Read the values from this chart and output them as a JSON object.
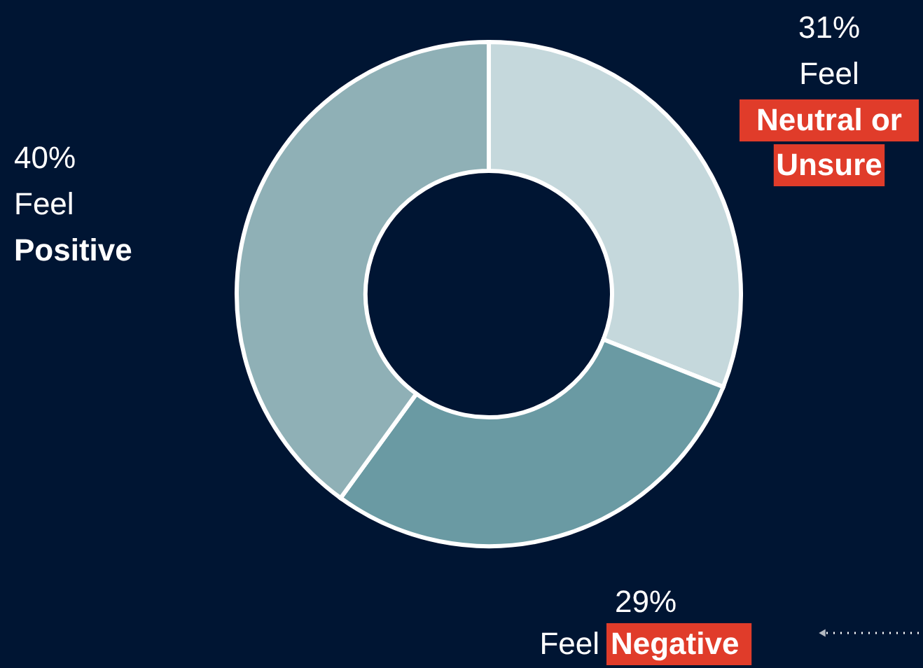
{
  "chart_data": {
    "type": "donut",
    "categories": [
      "Neutral or\nUnsure",
      "Negative",
      "Positive"
    ],
    "values": [
      31,
      29,
      40
    ],
    "colors": [
      "#c5d8dc",
      "#6a9aa3",
      "#8fb0b6"
    ],
    "value_labels": [
      "31%",
      "29%",
      "40%"
    ],
    "annotations": [
      "Feel",
      "Feel",
      "Feel"
    ]
  }
}
